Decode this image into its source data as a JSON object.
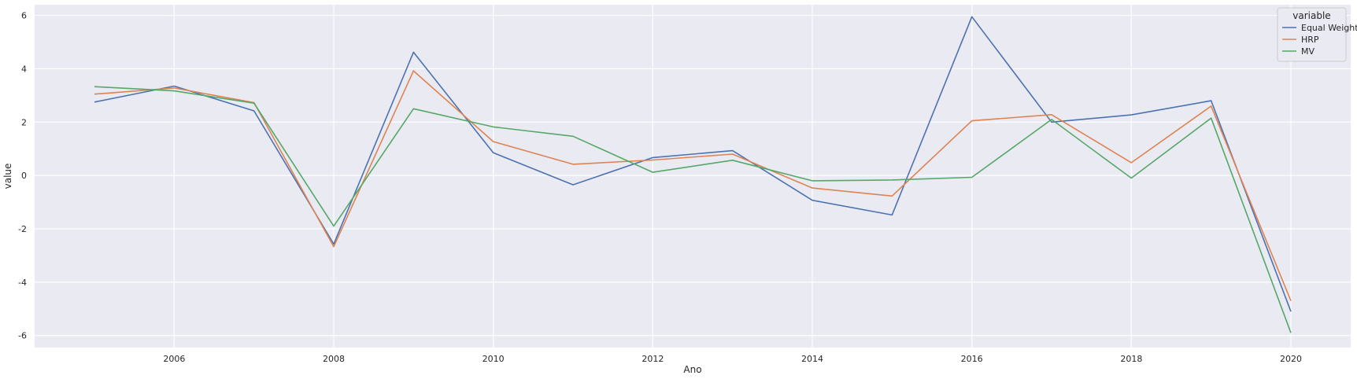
{
  "chart_data": {
    "type": "line",
    "title": "",
    "xlabel": "Ano",
    "ylabel": "value",
    "x": [
      2005,
      2006,
      2007,
      2008,
      2009,
      2010,
      2011,
      2012,
      2013,
      2014,
      2015,
      2016,
      2017,
      2018,
      2019,
      2020
    ],
    "xlim": [
      2004.25,
      2020.75
    ],
    "ylim": [
      -6.45,
      6.4
    ],
    "xticks": [
      2006,
      2008,
      2010,
      2012,
      2014,
      2016,
      2018,
      2020
    ],
    "yticks": [
      -6,
      -4,
      -2,
      0,
      2,
      4,
      6
    ],
    "grid": true,
    "background": "#eaeaf2",
    "legend": {
      "title": "variable",
      "placement": "top-right"
    },
    "series": [
      {
        "name": "Equal Weights",
        "color": "#4c72b0",
        "values": [
          2.75,
          3.35,
          2.42,
          -2.57,
          4.62,
          0.85,
          -0.35,
          0.67,
          0.93,
          -0.93,
          -1.48,
          5.95,
          2.0,
          2.27,
          2.8,
          -5.1
        ]
      },
      {
        "name": "HRP",
        "color": "#dd8452",
        "values": [
          3.05,
          3.28,
          2.73,
          -2.67,
          3.92,
          1.27,
          0.42,
          0.58,
          0.8,
          -0.47,
          -0.77,
          2.05,
          2.28,
          0.48,
          2.6,
          -4.7
        ]
      },
      {
        "name": "MV",
        "color": "#55a868",
        "values": [
          3.33,
          3.17,
          2.71,
          -1.9,
          2.5,
          1.82,
          1.47,
          0.12,
          0.57,
          -0.2,
          -0.17,
          -0.07,
          2.1,
          -0.1,
          2.15,
          -5.9
        ]
      }
    ]
  }
}
